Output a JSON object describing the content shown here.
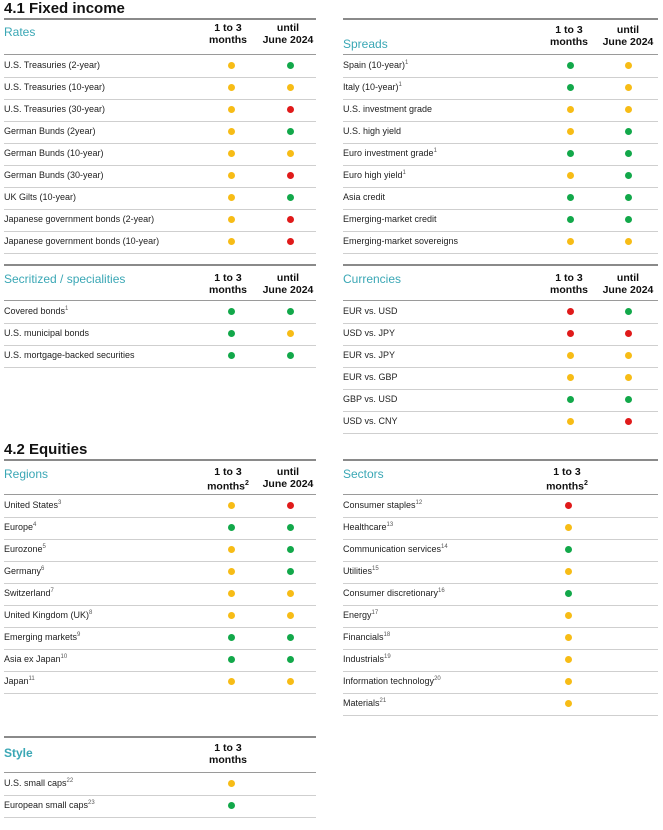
{
  "colors": {
    "green": "#12a84a",
    "yellow": "#f7bc16",
    "red": "#e01a1a",
    "accent": "#3aa7b5"
  },
  "section_fixed_income": "4.1 Fixed income",
  "section_equities": "4.2 Equities",
  "tables": {
    "rates": {
      "title": "Rates",
      "col1": "1 to 3",
      "col1b": "months",
      "col1_sup": "",
      "col2": "until",
      "col2b": "June 2024",
      "rows": [
        {
          "label": "U.S. Treasuries (2-year)",
          "sup": "",
          "c1": "yellow",
          "c2": "green"
        },
        {
          "label": "U.S. Treasuries (10-year)",
          "sup": "",
          "c1": "yellow",
          "c2": "yellow"
        },
        {
          "label": "U.S. Treasuries (30-year)",
          "sup": "",
          "c1": "yellow",
          "c2": "red"
        },
        {
          "label": "German Bunds (2year)",
          "sup": "",
          "c1": "yellow",
          "c2": "green"
        },
        {
          "label": "German Bunds (10-year)",
          "sup": "",
          "c1": "yellow",
          "c2": "yellow"
        },
        {
          "label": "German Bunds (30-year)",
          "sup": "",
          "c1": "yellow",
          "c2": "red"
        },
        {
          "label": "UK Gilts (10-year)",
          "sup": "",
          "c1": "yellow",
          "c2": "green"
        },
        {
          "label": "Japanese government bonds (2-year)",
          "sup": "",
          "c1": "yellow",
          "c2": "red"
        },
        {
          "label": "Japanese government bonds (10-year)",
          "sup": "",
          "c1": "yellow",
          "c2": "red"
        }
      ]
    },
    "spreads": {
      "title": "Spreads",
      "col1": "1 to 3",
      "col1b": "months",
      "col1_sup": "",
      "col2": "until",
      "col2b": "June 2024",
      "rows": [
        {
          "label": "Spain (10-year)",
          "sup": "1",
          "c1": "green",
          "c2": "yellow"
        },
        {
          "label": "Italy (10-year)",
          "sup": "1",
          "c1": "green",
          "c2": "yellow"
        },
        {
          "label": "U.S. investment grade",
          "sup": "",
          "c1": "yellow",
          "c2": "yellow"
        },
        {
          "label": "U.S. high yield",
          "sup": "",
          "c1": "yellow",
          "c2": "green"
        },
        {
          "label": "Euro investment grade",
          "sup": "1",
          "c1": "green",
          "c2": "green"
        },
        {
          "label": "Euro high yield",
          "sup": "1",
          "c1": "yellow",
          "c2": "green"
        },
        {
          "label": "Asia credit",
          "sup": "",
          "c1": "green",
          "c2": "green"
        },
        {
          "label": "Emerging-market credit",
          "sup": "",
          "c1": "green",
          "c2": "green"
        },
        {
          "label": "Emerging-market sovereigns",
          "sup": "",
          "c1": "yellow",
          "c2": "yellow"
        }
      ]
    },
    "securitized": {
      "title": "Secritized / specialities",
      "col1": "1 to 3",
      "col1b": "months",
      "col1_sup": "",
      "col2": "until",
      "col2b": "June 2024",
      "rows": [
        {
          "label": "Covered bonds",
          "sup": "1",
          "c1": "green",
          "c2": "green"
        },
        {
          "label": "U.S. municipal bonds",
          "sup": "",
          "c1": "green",
          "c2": "yellow"
        },
        {
          "label": "U.S. mortgage-backed securities",
          "sup": "",
          "c1": "green",
          "c2": "green"
        }
      ]
    },
    "currencies": {
      "title": "Currencies",
      "col1": "1 to 3",
      "col1b": "months",
      "col1_sup": "",
      "col2": "until",
      "col2b": "June 2024",
      "rows": [
        {
          "label": "EUR vs. USD",
          "sup": "",
          "c1": "red",
          "c2": "green"
        },
        {
          "label": "USD vs. JPY",
          "sup": "",
          "c1": "red",
          "c2": "red"
        },
        {
          "label": "EUR vs. JPY",
          "sup": "",
          "c1": "yellow",
          "c2": "yellow"
        },
        {
          "label": "EUR vs. GBP",
          "sup": "",
          "c1": "yellow",
          "c2": "yellow"
        },
        {
          "label": "GBP vs. USD",
          "sup": "",
          "c1": "green",
          "c2": "green"
        },
        {
          "label": "USD vs. CNY",
          "sup": "",
          "c1": "yellow",
          "c2": "red"
        }
      ]
    },
    "regions": {
      "title": "Regions",
      "col1": "1 to 3",
      "col1b": "months",
      "col1_sup": "2",
      "col2": "until",
      "col2b": "June 2024",
      "rows": [
        {
          "label": "United States",
          "sup": "3",
          "c1": "yellow",
          "c2": "red"
        },
        {
          "label": "Europe",
          "sup": "4",
          "c1": "green",
          "c2": "green"
        },
        {
          "label": "Eurozone",
          "sup": "5",
          "c1": "yellow",
          "c2": "green"
        },
        {
          "label": "Germany",
          "sup": "6",
          "c1": "yellow",
          "c2": "green"
        },
        {
          "label": "Switzerland",
          "sup": "7",
          "c1": "yellow",
          "c2": "yellow"
        },
        {
          "label": "United Kingdom (UK)",
          "sup": "8",
          "c1": "yellow",
          "c2": "yellow"
        },
        {
          "label": "Emerging markets",
          "sup": "9",
          "c1": "green",
          "c2": "green"
        },
        {
          "label": "Asia ex Japan",
          "sup": "10",
          "c1": "green",
          "c2": "green"
        },
        {
          "label": "Japan",
          "sup": "11",
          "c1": "yellow",
          "c2": "yellow"
        }
      ]
    },
    "sectors": {
      "title": "Sectors",
      "col1": "1 to 3",
      "col1b": "months",
      "col1_sup": "2",
      "rows": [
        {
          "label": "Consumer staples",
          "sup": "12",
          "c1": "red"
        },
        {
          "label": "Healthcare",
          "sup": "13",
          "c1": "yellow"
        },
        {
          "label": "Communication services",
          "sup": "14",
          "c1": "green"
        },
        {
          "label": "Utilities",
          "sup": "15",
          "c1": "yellow"
        },
        {
          "label": "Consumer discretionary",
          "sup": "16",
          "c1": "green"
        },
        {
          "label": "Energy",
          "sup": "17",
          "c1": "yellow"
        },
        {
          "label": "Financials",
          "sup": "18",
          "c1": "yellow"
        },
        {
          "label": "Industrials",
          "sup": "19",
          "c1": "yellow"
        },
        {
          "label": "Information technology",
          "sup": "20",
          "c1": "yellow"
        },
        {
          "label": "Materials",
          "sup": "21",
          "c1": "yellow"
        }
      ]
    },
    "style": {
      "title": "Style",
      "col1": "1 to 3",
      "col1b": "months",
      "col1_sup": "",
      "rows": [
        {
          "label": "U.S. small caps",
          "sup": "22",
          "c1": "yellow"
        },
        {
          "label": "European small caps",
          "sup": "23",
          "c1": "green"
        }
      ]
    }
  }
}
